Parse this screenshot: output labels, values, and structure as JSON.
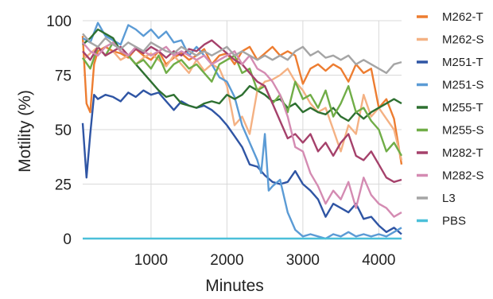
{
  "chart_data": {
    "type": "line",
    "title": "",
    "xlabel": "Minutes",
    "ylabel": "Motility (%)",
    "xlim": [
      100,
      4300
    ],
    "ylim": [
      0,
      100
    ],
    "x_ticks": [
      1000,
      2000,
      3000,
      4000
    ],
    "y_ticks": [
      0,
      25,
      50,
      75,
      100
    ],
    "grid": true,
    "legend_position": "right",
    "series": [
      {
        "name": "M262-T",
        "color": "#ED7D31",
        "x": [
          100,
          150,
          200,
          250,
          300,
          400,
          500,
          600,
          700,
          800,
          900,
          1000,
          1100,
          1200,
          1300,
          1400,
          1500,
          1600,
          1700,
          1800,
          1900,
          2000,
          2100,
          2200,
          2300,
          2400,
          2500,
          2600,
          2700,
          2800,
          2900,
          3000,
          3100,
          3200,
          3300,
          3400,
          3500,
          3600,
          3700,
          3800,
          3900,
          4000,
          4100,
          4200,
          4300
        ],
        "y": [
          93,
          62,
          58,
          80,
          86,
          88,
          86,
          85,
          83,
          87,
          84,
          82,
          86,
          80,
          83,
          85,
          82,
          84,
          87,
          80,
          84,
          85,
          80,
          86,
          88,
          82,
          85,
          88,
          84,
          86,
          84,
          71,
          78,
          80,
          77,
          80,
          78,
          72,
          80,
          76,
          78,
          60,
          64,
          55,
          34
        ]
      },
      {
        "name": "M262-S",
        "color": "#F4B183",
        "x": [
          100,
          200,
          300,
          400,
          500,
          600,
          700,
          800,
          900,
          1000,
          1100,
          1200,
          1300,
          1400,
          1500,
          1600,
          1700,
          1800,
          1900,
          2000,
          2100,
          2200,
          2300,
          2400,
          2500,
          2600,
          2700,
          2800,
          2900,
          3000,
          3100,
          3200,
          3300,
          3400,
          3500,
          3600,
          3700,
          3800,
          3900,
          4000,
          4100,
          4200,
          4300
        ],
        "y": [
          82,
          85,
          88,
          84,
          86,
          82,
          84,
          80,
          83,
          85,
          82,
          79,
          84,
          80,
          76,
          82,
          77,
          80,
          78,
          70,
          52,
          56,
          48,
          68,
          72,
          73,
          75,
          78,
          72,
          68,
          62,
          58,
          60,
          50,
          40,
          52,
          48,
          66,
          56,
          60,
          55,
          50,
          36
        ]
      },
      {
        "name": "M251-T",
        "color": "#2F55A4",
        "x": [
          100,
          150,
          200,
          250,
          300,
          400,
          500,
          600,
          700,
          800,
          900,
          1000,
          1100,
          1200,
          1300,
          1400,
          1500,
          1600,
          1700,
          1800,
          1900,
          2000,
          2100,
          2200,
          2300,
          2400,
          2500,
          2600,
          2700,
          2800,
          2900,
          3000,
          3100,
          3200,
          3300,
          3400,
          3500,
          3600,
          3700,
          3800,
          3900,
          4000,
          4100,
          4200,
          4300
        ],
        "y": [
          53,
          28,
          48,
          66,
          64,
          66,
          65,
          63,
          67,
          65,
          68,
          66,
          67,
          63,
          59,
          63,
          61,
          60,
          61,
          59,
          56,
          52,
          47,
          42,
          34,
          33,
          29,
          26,
          25,
          26,
          31,
          25,
          22,
          18,
          10,
          16,
          14,
          12,
          16,
          9,
          10,
          6,
          3,
          5,
          2
        ]
      },
      {
        "name": "M251-S",
        "color": "#5B9BD5",
        "x": [
          100,
          200,
          300,
          400,
          500,
          600,
          700,
          800,
          900,
          1000,
          1100,
          1200,
          1300,
          1400,
          1500,
          1600,
          1700,
          1800,
          1900,
          2000,
          2100,
          2200,
          2300,
          2400,
          2450,
          2500,
          2550,
          2600,
          2700,
          2800,
          2900,
          3000,
          3100,
          3200,
          3300,
          3400,
          3500,
          3600,
          3700,
          3800,
          3900,
          4000,
          4100,
          4200,
          4300
        ],
        "y": [
          92,
          90,
          99,
          93,
          91,
          89,
          98,
          96,
          93,
          96,
          92,
          95,
          90,
          91,
          84,
          88,
          84,
          80,
          74,
          72,
          65,
          52,
          44,
          36,
          30,
          48,
          22,
          24,
          27,
          12,
          4,
          1,
          2,
          1,
          0,
          2,
          1,
          3,
          1,
          2,
          1,
          2,
          1,
          3,
          5
        ]
      },
      {
        "name": "M255-T",
        "color": "#2E7031",
        "x": [
          100,
          200,
          300,
          400,
          500,
          600,
          700,
          800,
          900,
          1000,
          1100,
          1200,
          1300,
          1400,
          1500,
          1600,
          1700,
          1800,
          1900,
          2000,
          2100,
          2200,
          2300,
          2400,
          2500,
          2600,
          2700,
          2800,
          2900,
          3000,
          3100,
          3200,
          3300,
          3400,
          3500,
          3600,
          3700,
          3800,
          3900,
          4000,
          4100,
          4200,
          4300
        ],
        "y": [
          89,
          92,
          96,
          94,
          92,
          86,
          84,
          80,
          76,
          72,
          68,
          65,
          66,
          62,
          61,
          60,
          62,
          63,
          62,
          66,
          64,
          66,
          70,
          68,
          66,
          63,
          64,
          60,
          62,
          58,
          60,
          58,
          57,
          60,
          56,
          54,
          58,
          55,
          58,
          60,
          62,
          64,
          62
        ]
      },
      {
        "name": "M255-S",
        "color": "#70AD47",
        "x": [
          100,
          200,
          300,
          400,
          500,
          600,
          700,
          800,
          900,
          1000,
          1100,
          1200,
          1300,
          1400,
          1500,
          1600,
          1700,
          1800,
          1900,
          2000,
          2100,
          2200,
          2300,
          2400,
          2500,
          2600,
          2700,
          2800,
          2900,
          3000,
          3100,
          3200,
          3300,
          3400,
          3500,
          3600,
          3700,
          3800,
          3900,
          4000,
          4100,
          4200,
          4300
        ],
        "y": [
          83,
          78,
          88,
          84,
          90,
          86,
          84,
          80,
          82,
          78,
          84,
          76,
          80,
          82,
          78,
          80,
          76,
          72,
          80,
          82,
          84,
          76,
          78,
          68,
          70,
          62,
          66,
          58,
          72,
          64,
          66,
          60,
          68,
          56,
          62,
          70,
          58,
          60,
          54,
          50,
          40,
          44,
          38
        ]
      },
      {
        "name": "M282-T",
        "color": "#A5416B",
        "x": [
          100,
          200,
          300,
          400,
          500,
          600,
          700,
          800,
          900,
          1000,
          1100,
          1200,
          1300,
          1400,
          1500,
          1600,
          1700,
          1800,
          1900,
          2000,
          2100,
          2200,
          2300,
          2400,
          2500,
          2600,
          2700,
          2800,
          2900,
          3000,
          3100,
          3200,
          3300,
          3400,
          3500,
          3600,
          3700,
          3800,
          3900,
          4000,
          4100,
          4200,
          4300
        ],
        "y": [
          86,
          82,
          88,
          84,
          86,
          88,
          84,
          87,
          85,
          88,
          86,
          83,
          86,
          84,
          87,
          86,
          89,
          91,
          88,
          85,
          82,
          80,
          76,
          72,
          70,
          62,
          54,
          46,
          48,
          44,
          48,
          40,
          44,
          38,
          44,
          48,
          38,
          36,
          40,
          34,
          28,
          26,
          27
        ]
      },
      {
        "name": "M282-S",
        "color": "#D48BB2",
        "x": [
          100,
          200,
          300,
          400,
          500,
          600,
          700,
          800,
          900,
          1000,
          1100,
          1200,
          1300,
          1400,
          1500,
          1600,
          1700,
          1800,
          1900,
          2000,
          2100,
          2200,
          2300,
          2400,
          2500,
          2600,
          2700,
          2800,
          2900,
          3000,
          3100,
          3200,
          3300,
          3400,
          3500,
          3600,
          3700,
          3800,
          3900,
          4000,
          4100,
          4200,
          4300
        ],
        "y": [
          90,
          86,
          84,
          88,
          90,
          86,
          84,
          88,
          86,
          84,
          86,
          88,
          84,
          86,
          84,
          82,
          84,
          80,
          82,
          84,
          86,
          80,
          84,
          78,
          76,
          72,
          66,
          56,
          42,
          40,
          30,
          24,
          16,
          22,
          18,
          26,
          14,
          28,
          20,
          16,
          14,
          10,
          12
        ]
      },
      {
        "name": "L3",
        "color": "#A5A5A5",
        "x": [
          100,
          200,
          300,
          400,
          500,
          600,
          700,
          800,
          900,
          1000,
          1100,
          1200,
          1300,
          1400,
          1500,
          1600,
          1700,
          1800,
          1900,
          2000,
          2100,
          2200,
          2300,
          2400,
          2500,
          2600,
          2700,
          2800,
          2900,
          3000,
          3100,
          3200,
          3300,
          3400,
          3500,
          3600,
          3700,
          3800,
          3900,
          4000,
          4100,
          4200,
          4300
        ],
        "y": [
          94,
          90,
          88,
          92,
          89,
          87,
          90,
          88,
          86,
          90,
          88,
          86,
          85,
          88,
          86,
          84,
          86,
          84,
          86,
          88,
          84,
          86,
          84,
          82,
          84,
          82,
          84,
          82,
          86,
          88,
          84,
          86,
          83,
          84,
          82,
          84,
          80,
          82,
          80,
          78,
          76,
          80,
          81
        ]
      },
      {
        "name": "PBS",
        "color": "#4BC0D9",
        "x": [
          100,
          4300
        ],
        "y": [
          0,
          0
        ]
      }
    ]
  }
}
